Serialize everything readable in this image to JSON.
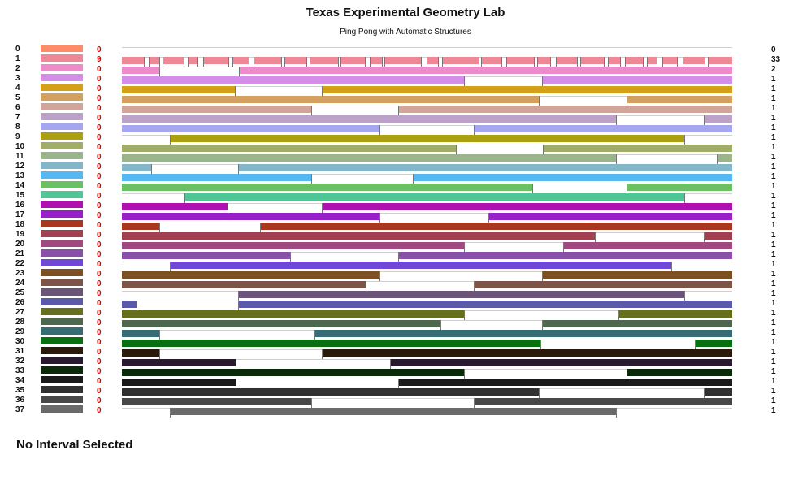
{
  "title": "Texas Experimental Geometry Lab",
  "subtitle": "Ping Pong with Automatic Structures",
  "status": "No Interval Selected",
  "rows": [
    {
      "label": "0",
      "selected": "0",
      "count": "0",
      "color": "#ff8c66",
      "segments": []
    },
    {
      "label": "1",
      "selected": "9",
      "count": "33",
      "color": "#ef8896",
      "segments": []
    },
    {
      "label": "2",
      "selected": "0",
      "count": "2",
      "color": "#ec8cca",
      "segments": [
        [
          0,
          0.061
        ],
        [
          0.192,
          1
        ]
      ]
    },
    {
      "label": "3",
      "selected": "0",
      "count": "1",
      "color": "#d48de8",
      "segments": [
        [
          0,
          0.56
        ],
        [
          0.688,
          1
        ]
      ]
    },
    {
      "label": "4",
      "selected": "0",
      "count": "1",
      "color": "#d4a017",
      "segments": [
        [
          0,
          0.185
        ],
        [
          0.328,
          1
        ]
      ]
    },
    {
      "label": "5",
      "selected": "0",
      "count": "1",
      "color": "#d4a060",
      "segments": [
        [
          0,
          0.683
        ],
        [
          0.827,
          1
        ]
      ]
    },
    {
      "label": "6",
      "selected": "0",
      "count": "1",
      "color": "#d0a59a",
      "segments": [
        [
          0,
          0.31
        ],
        [
          0.453,
          1
        ]
      ]
    },
    {
      "label": "7",
      "selected": "0",
      "count": "1",
      "color": "#bca2c8",
      "segments": [
        [
          0,
          0.81
        ],
        [
          0.954,
          1
        ]
      ]
    },
    {
      "label": "8",
      "selected": "0",
      "count": "1",
      "color": "#a6a6f0",
      "segments": [
        [
          0,
          0.422
        ],
        [
          0.576,
          1
        ]
      ]
    },
    {
      "label": "9",
      "selected": "0",
      "count": "1",
      "color": "#aaa010",
      "segments": [
        [
          0.078,
          0.921
        ]
      ]
    },
    {
      "label": "10",
      "selected": "0",
      "count": "1",
      "color": "#a0ae6a",
      "segments": [
        [
          0,
          0.547
        ],
        [
          0.69,
          1
        ]
      ]
    },
    {
      "label": "11",
      "selected": "0",
      "count": "1",
      "color": "#9ab48c",
      "segments": [
        [
          0,
          0.81
        ],
        [
          0.975,
          1
        ]
      ]
    },
    {
      "label": "12",
      "selected": "0",
      "count": "1",
      "color": "#82b6c8",
      "segments": [
        [
          0,
          0.048
        ],
        [
          0.191,
          1
        ]
      ]
    },
    {
      "label": "13",
      "selected": "0",
      "count": "1",
      "color": "#56b8f0",
      "segments": [
        [
          0,
          0.31
        ],
        [
          0.477,
          1
        ]
      ]
    },
    {
      "label": "14",
      "selected": "0",
      "count": "1",
      "color": "#6ac062",
      "segments": [
        [
          0,
          0.672
        ],
        [
          0.827,
          1
        ]
      ]
    },
    {
      "label": "15",
      "selected": "0",
      "count": "1",
      "color": "#4fc696",
      "segments": [
        [
          0.102,
          0.921
        ]
      ]
    },
    {
      "label": "16",
      "selected": "0",
      "count": "1",
      "color": "#b010b0",
      "segments": [
        [
          0,
          0.173
        ],
        [
          0.328,
          1
        ]
      ]
    },
    {
      "label": "17",
      "selected": "0",
      "count": "1",
      "color": "#9820c8",
      "segments": [
        [
          0,
          0.422
        ],
        [
          0.601,
          1
        ]
      ]
    },
    {
      "label": "18",
      "selected": "0",
      "count": "1",
      "color": "#a83820",
      "segments": [
        [
          0,
          0.061
        ],
        [
          0.226,
          1
        ]
      ]
    },
    {
      "label": "19",
      "selected": "0",
      "count": "1",
      "color": "#a04050",
      "segments": [
        [
          0,
          0.775
        ],
        [
          0.954,
          1
        ]
      ]
    },
    {
      "label": "20",
      "selected": "0",
      "count": "1",
      "color": "#a04880",
      "segments": [
        [
          0,
          0.56
        ],
        [
          0.723,
          1
        ]
      ]
    },
    {
      "label": "21",
      "selected": "0",
      "count": "1",
      "color": "#8850a8",
      "segments": [
        [
          0,
          0.275
        ],
        [
          0.453,
          1
        ]
      ]
    },
    {
      "label": "22",
      "selected": "0",
      "count": "1",
      "color": "#7048d8",
      "segments": [
        [
          0.078,
          0.9
        ]
      ]
    },
    {
      "label": "23",
      "selected": "0",
      "count": "1",
      "color": "#7c5020",
      "segments": [
        [
          0,
          0.422
        ],
        [
          0.688,
          1
        ]
      ]
    },
    {
      "label": "24",
      "selected": "0",
      "count": "1",
      "color": "#7c5448",
      "segments": [
        [
          0,
          0.4
        ],
        [
          0.576,
          1
        ]
      ]
    },
    {
      "label": "25",
      "selected": "0",
      "count": "1",
      "color": "#6a5478",
      "segments": [
        [
          0.191,
          0.921
        ]
      ]
    },
    {
      "label": "26",
      "selected": "0",
      "count": "1",
      "color": "#5a5aa8",
      "segments": [
        [
          0,
          0.024
        ],
        [
          0.19,
          1
        ]
      ]
    },
    {
      "label": "27",
      "selected": "0",
      "count": "1",
      "color": "#66701c",
      "segments": [
        [
          0,
          0.56
        ],
        [
          0.814,
          1
        ]
      ]
    },
    {
      "label": "28",
      "selected": "0",
      "count": "1",
      "color": "#4e6850",
      "segments": [
        [
          0,
          0.522
        ],
        [
          0.688,
          1
        ]
      ]
    },
    {
      "label": "29",
      "selected": "0",
      "count": "1",
      "color": "#366c74",
      "segments": [
        [
          0,
          0.061
        ],
        [
          0.315,
          1
        ]
      ]
    },
    {
      "label": "30",
      "selected": "0",
      "count": "1",
      "color": "#087010",
      "segments": [
        [
          0,
          0.686
        ],
        [
          0.939,
          1
        ]
      ]
    },
    {
      "label": "31",
      "selected": "0",
      "count": "1",
      "color": "#2a1a0c",
      "segments": [
        [
          0,
          0.061
        ],
        [
          0.328,
          1
        ]
      ]
    },
    {
      "label": "32",
      "selected": "0",
      "count": "1",
      "color": "#2a1a30",
      "segments": [
        [
          0,
          0.186
        ],
        [
          0.44,
          1
        ]
      ]
    },
    {
      "label": "33",
      "selected": "0",
      "count": "1",
      "color": "#0a2a0a",
      "segments": [
        [
          0,
          0.56
        ],
        [
          0.827,
          1
        ]
      ]
    },
    {
      "label": "34",
      "selected": "0",
      "count": "1",
      "color": "#1a1a1a",
      "segments": [
        [
          0,
          0.186
        ],
        [
          0.453,
          1
        ]
      ]
    },
    {
      "label": "35",
      "selected": "0",
      "count": "1",
      "color": "#303030",
      "segments": [
        [
          0,
          0.683
        ],
        [
          0.954,
          1
        ]
      ]
    },
    {
      "label": "36",
      "selected": "0",
      "count": "1",
      "color": "#484848",
      "segments": [
        [
          0,
          0.31
        ],
        [
          0.577,
          1
        ]
      ]
    },
    {
      "label": "37",
      "selected": "0",
      "count": "1",
      "color": "#6a6a6a",
      "segments": [
        [
          0.078,
          0.81
        ]
      ]
    }
  ]
}
